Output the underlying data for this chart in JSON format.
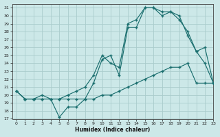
{
  "xlabel": "Humidex (Indice chaleur)",
  "bg_color": "#cce8e8",
  "grid_color": "#aacccc",
  "line_color": "#1a6e6e",
  "xmin": -0.5,
  "xmax": 23,
  "ymin": 17,
  "ymax": 31.5,
  "line1_x": [
    0,
    1,
    2,
    3,
    4,
    5,
    6,
    7,
    8,
    9,
    10,
    11,
    12,
    13,
    14,
    15,
    16,
    17,
    18,
    19,
    20,
    21,
    22,
    23
  ],
  "line1_y": [
    20.5,
    19.5,
    19.5,
    19.5,
    19.5,
    17.2,
    18.5,
    18.5,
    19.5,
    21.5,
    24.5,
    25.0,
    22.5,
    28.5,
    28.5,
    31.0,
    31.0,
    30.5,
    30.5,
    29.5,
    28.0,
    25.5,
    24.0,
    21.5
  ],
  "line2_x": [
    0,
    1,
    2,
    3,
    4,
    5,
    6,
    7,
    8,
    9,
    10,
    11,
    12,
    13,
    14,
    15,
    16,
    17,
    18,
    19,
    20,
    21,
    22,
    23
  ],
  "line2_y": [
    20.5,
    19.5,
    19.5,
    19.5,
    19.5,
    19.5,
    19.5,
    19.5,
    19.5,
    19.5,
    20.0,
    20.0,
    20.5,
    21.0,
    21.5,
    22.0,
    22.5,
    23.0,
    23.5,
    23.5,
    24.0,
    21.5,
    21.5,
    21.5
  ],
  "line3_x": [
    0,
    1,
    2,
    3,
    4,
    5,
    6,
    7,
    8,
    9,
    10,
    11,
    12,
    13,
    14,
    15,
    16,
    17,
    18,
    19,
    20,
    21,
    22,
    23
  ],
  "line3_y": [
    20.5,
    19.5,
    19.5,
    20.0,
    19.5,
    19.5,
    20.0,
    20.5,
    21.0,
    22.5,
    25.0,
    24.0,
    23.5,
    29.0,
    29.5,
    31.0,
    31.0,
    30.0,
    30.5,
    30.0,
    27.5,
    25.5,
    26.0,
    21.5
  ]
}
